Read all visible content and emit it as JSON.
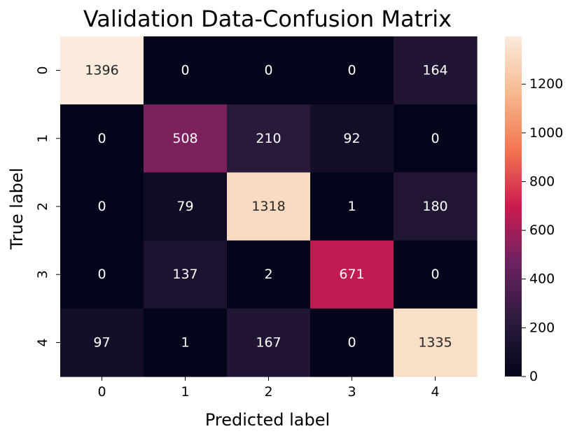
{
  "chart_data": {
    "type": "heatmap",
    "title": "Validation Data-Confusion Matrix",
    "xlabel": "Predicted label",
    "ylabel": "True label",
    "x_categories": [
      "0",
      "1",
      "2",
      "3",
      "4"
    ],
    "y_categories": [
      "0",
      "1",
      "2",
      "3",
      "4"
    ],
    "matrix": [
      [
        1396,
        0,
        0,
        0,
        164
      ],
      [
        0,
        508,
        210,
        92,
        0
      ],
      [
        0,
        79,
        1318,
        1,
        180
      ],
      [
        0,
        137,
        2,
        671,
        0
      ],
      [
        97,
        1,
        167,
        0,
        1335
      ]
    ],
    "colorbar": {
      "range": [
        0,
        1396
      ],
      "ticks": [
        0,
        200,
        400,
        600,
        800,
        1000,
        1200
      ],
      "colormap": "rocket",
      "stops": [
        "#03051a",
        "#2d1b3d",
        "#6c2261",
        "#cb1b4f",
        "#f37651",
        "#f6b98e",
        "#faebdd"
      ]
    }
  }
}
